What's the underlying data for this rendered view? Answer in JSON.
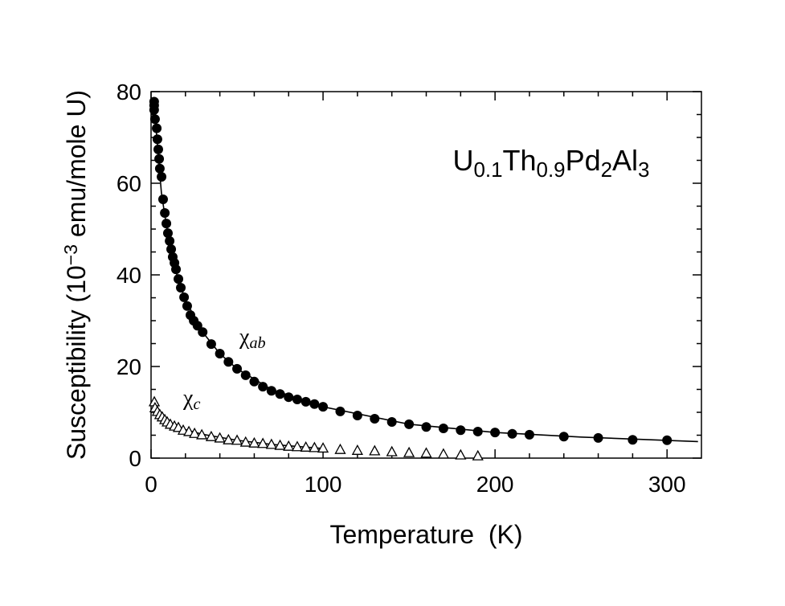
{
  "chart_data": {
    "type": "scatter",
    "title_parts": [
      {
        "text": "U"
      },
      {
        "text": "0.1",
        "sub": true
      },
      {
        "text": "Th"
      },
      {
        "text": "0.9",
        "sub": true
      },
      {
        "text": "Pd"
      },
      {
        "text": "2",
        "sub": true
      },
      {
        "text": "Al"
      },
      {
        "text": "3",
        "sub": true
      }
    ],
    "xlabel": "Temperature  (K)",
    "ylabel_parts": [
      {
        "text": "Susceptibility (10"
      },
      {
        "text": "−3",
        "sup": true
      },
      {
        "text": " emu/mole U)"
      }
    ],
    "xlim": [
      0,
      320
    ],
    "ylim": [
      0,
      80
    ],
    "xticks": [
      0,
      100,
      200,
      300
    ],
    "yticks": [
      0,
      20,
      40,
      60,
      80
    ],
    "xminorticks": [
      20,
      40,
      60,
      80,
      120,
      140,
      160,
      180,
      220,
      240,
      260,
      280
    ],
    "yminorticks": [
      5,
      10,
      15,
      25,
      30,
      35,
      45,
      50,
      55,
      65,
      70,
      75
    ],
    "series": [
      {
        "name": "χ",
        "name_sub": "ab",
        "style": "circle",
        "color": "#000000",
        "x": [
          1.8,
          1.8,
          1.8,
          2.3,
          3.3,
          3.7,
          4.2,
          4.7,
          5.1,
          6.1,
          7,
          8,
          8.9,
          9.8,
          10.8,
          11.7,
          12.6,
          13.6,
          14.5,
          15.9,
          17.3,
          19.2,
          21,
          22.9,
          24.8,
          27,
          30,
          35,
          40,
          45,
          50,
          55,
          60,
          65,
          70,
          75,
          80,
          85,
          90,
          95,
          100,
          110,
          120,
          130,
          140,
          150,
          160,
          170,
          180,
          190,
          200,
          210,
          220,
          240,
          260,
          280,
          300
        ],
        "values": [
          77.8,
          77,
          76,
          74,
          72,
          69.6,
          67.4,
          65.3,
          63.2,
          61.4,
          56.5,
          53.5,
          51.2,
          49.1,
          47.4,
          45.6,
          43.9,
          42.6,
          41.2,
          39.1,
          37.2,
          35.1,
          33.2,
          31.2,
          30,
          28.9,
          27.5,
          24.9,
          22.8,
          21,
          19.5,
          18.1,
          16.7,
          15.6,
          14.7,
          14,
          13.3,
          12.8,
          12.3,
          11.8,
          11.2,
          10.2,
          9.3,
          8.6,
          7.9,
          7.4,
          6.8,
          6.5,
          6.1,
          5.8,
          5.6,
          5.3,
          5.1,
          4.7,
          4.4,
          4,
          3.9
        ]
      },
      {
        "name": "χ",
        "name_sub": "c",
        "style": "triangle",
        "color": "#000000",
        "x": [
          1.9,
          2.3,
          3.7,
          5.1,
          6.5,
          8,
          9.4,
          11.2,
          13.6,
          15.9,
          18.7,
          22,
          25.3,
          29.5,
          35,
          40,
          45,
          50,
          55,
          60,
          65,
          70,
          75,
          80,
          85,
          90,
          95,
          100,
          110,
          120,
          130,
          140,
          150,
          160,
          170,
          180,
          190
        ],
        "values": [
          12.3,
          11,
          10.2,
          9.5,
          9,
          8.4,
          7.9,
          7.4,
          7,
          6.7,
          6.1,
          5.8,
          5.4,
          5.1,
          4.7,
          4.4,
          4,
          3.9,
          3.5,
          3.3,
          3.2,
          3,
          2.8,
          2.6,
          2.5,
          2.4,
          2.3,
          2.2,
          1.9,
          1.7,
          1.6,
          1.4,
          1.2,
          1.1,
          0.9,
          0.7,
          0.5
        ]
      }
    ],
    "fits": [
      {
        "color": "#000000",
        "x": [
          2,
          4,
          6,
          8,
          10,
          15,
          20,
          30,
          40,
          50,
          70,
          100,
          150,
          200,
          250,
          318
        ],
        "values": [
          76,
          67,
          58,
          53,
          48,
          40,
          34.5,
          27.5,
          22.8,
          19.5,
          15,
          11.2,
          7.4,
          5.6,
          4.6,
          3.6
        ]
      },
      {
        "color": "#000000",
        "x": [
          2,
          5,
          10,
          20,
          30,
          50,
          70,
          100
        ],
        "values": [
          11.5,
          9.6,
          8,
          6.2,
          5.2,
          3.9,
          3,
          2.1
        ]
      }
    ]
  }
}
